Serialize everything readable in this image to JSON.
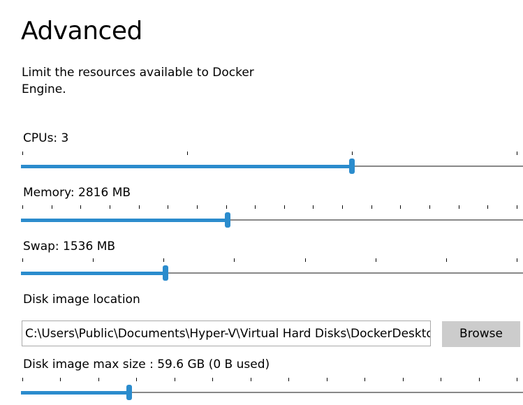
{
  "title": "Advanced",
  "description": "Limit the resources available to Docker Engine.",
  "sliders": [
    {
      "label": "CPUs: 3",
      "ticks": 4,
      "value_fraction": 0.667
    },
    {
      "label": "Memory: 2816 MB",
      "ticks": 18,
      "value_fraction": 0.415
    },
    {
      "label": "Swap: 1536 MB",
      "ticks": 8,
      "value_fraction": 0.29
    },
    {
      "label": "Disk image max size : 59.6 GB (0 B  used)",
      "ticks": 14,
      "value_fraction": 0.216
    }
  ],
  "disk": {
    "label": "Disk image location",
    "path": "C:\\Users\\Public\\Documents\\Hyper-V\\Virtual Hard Disks\\DockerDesktop.vhdx",
    "browse_label": "Browse"
  },
  "colors": {
    "accent": "#2b8ccd",
    "track": "#888888",
    "button": "#cccccc"
  }
}
